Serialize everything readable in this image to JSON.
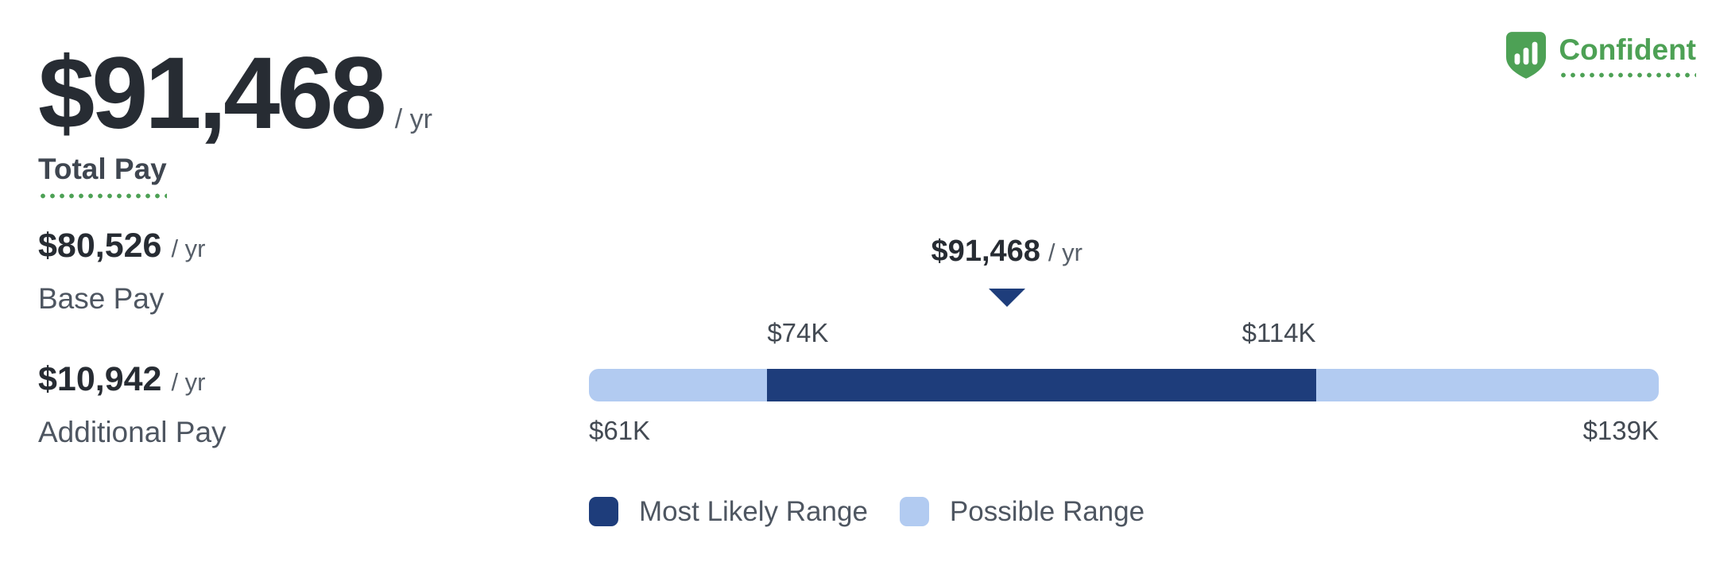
{
  "card": {
    "background": "#ffffff"
  },
  "total_pay": {
    "amount": "$91,468",
    "per": "/ yr",
    "label": "Total Pay"
  },
  "confidence": {
    "label": "Confident",
    "color": "#4da155",
    "icon": "shield-bar-chart-icon"
  },
  "breakdown": [
    {
      "amount": "$80,526",
      "per": "/ yr",
      "label": "Base Pay"
    },
    {
      "amount": "$10,942",
      "per": "/ yr",
      "label": "Additional Pay"
    }
  ],
  "chart_data": {
    "type": "range-bar",
    "title": "",
    "estimate": {
      "amount": "$91,468",
      "per": "/ yr",
      "value": 91468
    },
    "axis": {
      "min": 61000,
      "max": 139000,
      "grid": false
    },
    "possible_range": {
      "min": 61000,
      "max": 139000,
      "min_label": "$61K",
      "max_label": "$139K",
      "color": "#b2cbf1"
    },
    "most_likely_range": {
      "min": 74000,
      "max": 114000,
      "min_label": "$74K",
      "max_label": "$114K",
      "color": "#1e3d7b"
    },
    "legend": [
      {
        "label": "Most Likely Range",
        "color": "#1e3d7b"
      },
      {
        "label": "Possible Range",
        "color": "#b2cbf1"
      }
    ]
  }
}
